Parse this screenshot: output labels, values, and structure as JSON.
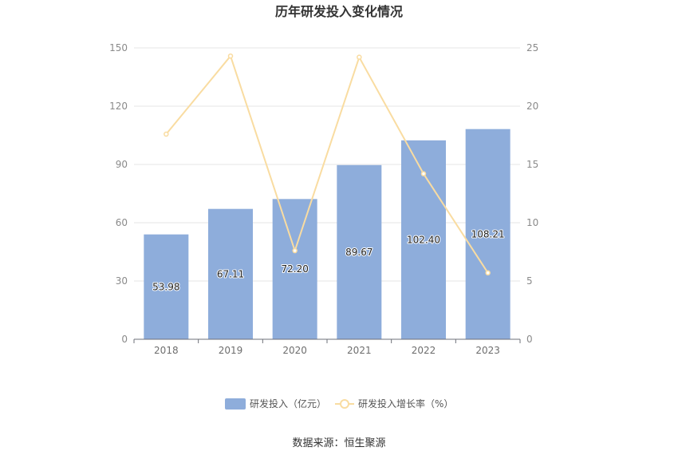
{
  "chart_data": {
    "type": "bar",
    "title": "历年研发投入变化情况",
    "categories": [
      "2018",
      "2019",
      "2020",
      "2021",
      "2022",
      "2023"
    ],
    "series": [
      {
        "name": "研发投入（亿元）",
        "type": "bar",
        "axis": "left",
        "values": [
          53.98,
          67.11,
          72.2,
          89.67,
          102.4,
          108.21
        ],
        "labels": [
          "53.98",
          "67.11",
          "72.20",
          "89.67",
          "102.40",
          "108.21"
        ],
        "color": "#8eaddb"
      },
      {
        "name": "研发投入增长率（%）",
        "type": "line",
        "axis": "right",
        "values": [
          17.6,
          24.3,
          7.6,
          24.2,
          14.2,
          5.7
        ],
        "color": "#f9dca1"
      }
    ],
    "y_left": {
      "min": 0,
      "max": 150,
      "ticks": [
        0,
        30,
        60,
        90,
        120,
        150
      ]
    },
    "y_right": {
      "min": 0,
      "max": 25,
      "ticks": [
        0,
        5,
        10,
        15,
        20,
        25
      ]
    },
    "grid": true,
    "legend_position": "bottom"
  },
  "source_text": "数据来源：恒生聚源"
}
